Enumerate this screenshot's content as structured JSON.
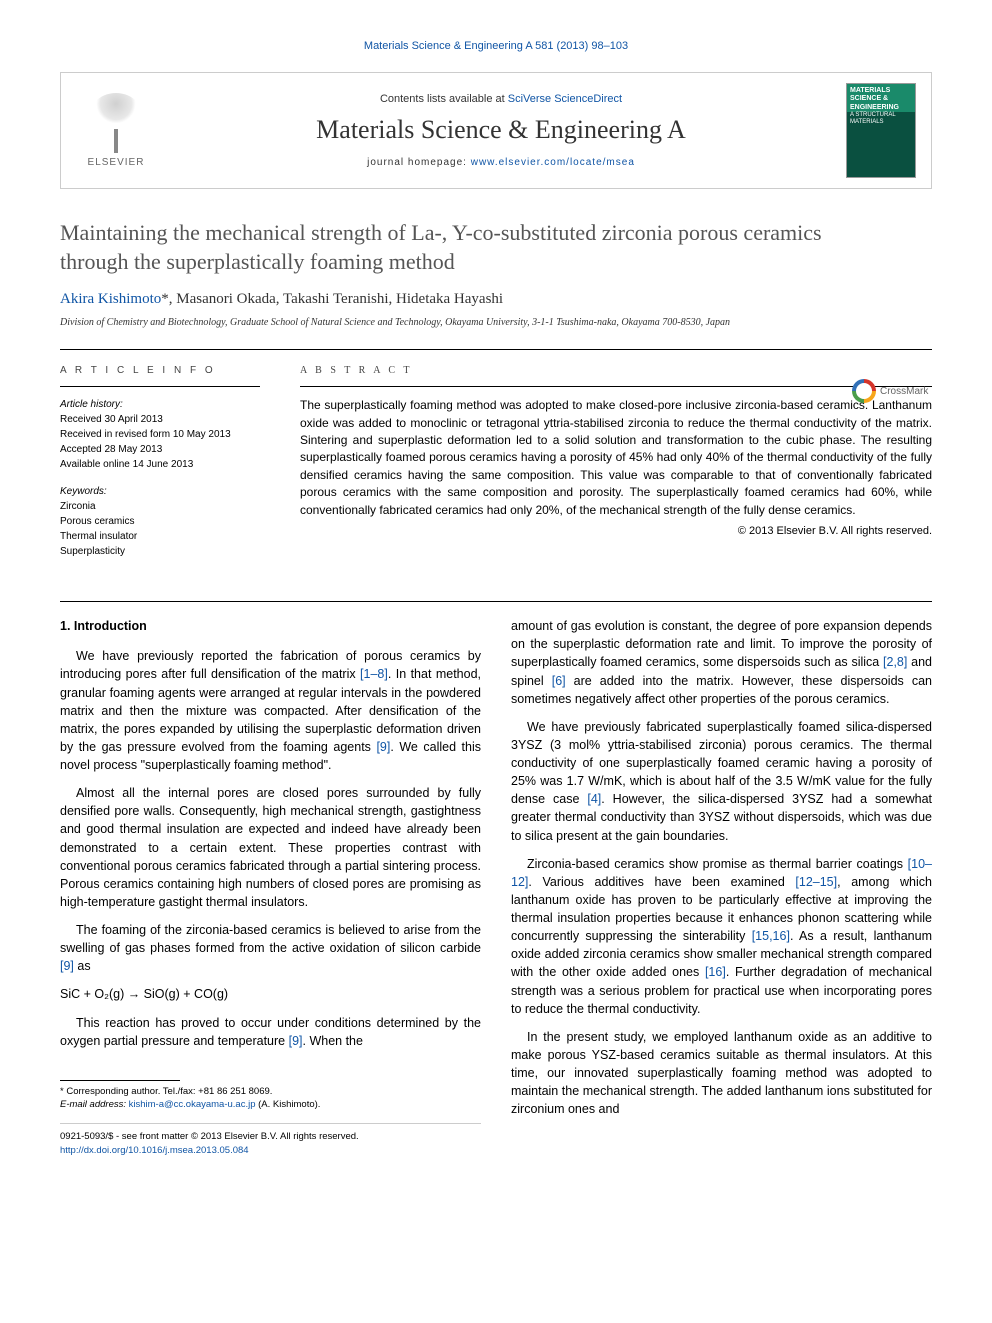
{
  "top_link": "Materials Science & Engineering A 581 (2013) 98–103",
  "header": {
    "elsevier": "ELSEVIER",
    "contents_prefix": "Contents lists available at ",
    "contents_link": "SciVerse ScienceDirect",
    "journal_name": "Materials Science & Engineering A",
    "homepage_prefix": "journal homepage: ",
    "homepage_link": "www.elsevier.com/locate/msea",
    "cover_title": "MATERIALS SCIENCE & ENGINEERING",
    "cover_sub": "A STRUCTURAL MATERIALS"
  },
  "crossmark": "CrossMark",
  "article": {
    "title": "Maintaining the mechanical strength of La-, Y-co-substituted zirconia porous ceramics through the superplastically foaming method",
    "authors_list": "Akira Kishimoto",
    "authors_rest": ", Masanori Okada, Takashi Teranishi, Hidetaka Hayashi",
    "star": "*",
    "affiliation": "Division of Chemistry and Biotechnology, Graduate School of Natural Science and Technology, Okayama University, 3-1-1 Tsushima-naka, Okayama 700-8530, Japan"
  },
  "info": {
    "heading": "A R T I C L E  I N F O",
    "history_label": "Article history:",
    "received": "Received 30 April 2013",
    "revised": "Received in revised form 10 May 2013",
    "accepted": "Accepted 28 May 2013",
    "online": "Available online 14 June 2013",
    "keywords_label": "Keywords:",
    "kw1": "Zirconia",
    "kw2": "Porous ceramics",
    "kw3": "Thermal insulator",
    "kw4": "Superplasticity"
  },
  "abstract": {
    "heading": "A B S T R A C T",
    "text": "The superplastically foaming method was adopted to make closed-pore inclusive zirconia-based ceramics. Lanthanum oxide was added to monoclinic or tetragonal yttria-stabilised zirconia to reduce the thermal conductivity of the matrix. Sintering and superplastic deformation led to a solid solution and transformation to the cubic phase. The resulting superplastically foamed porous ceramics having a porosity of 45% had only 40% of the thermal conductivity of the fully densified ceramics having the same composition. This value was comparable to that of conventionally fabricated porous ceramics with the same composition and porosity. The superplastically foamed ceramics had 60%, while conventionally fabricated ceramics had only 20%, of the mechanical strength of the fully dense ceramics.",
    "copyright": "© 2013 Elsevier B.V. All rights reserved."
  },
  "body": {
    "section_1": "1.  Introduction",
    "p1a": "We have previously reported the fabrication of porous ceramics by introducing pores after full densification of the matrix ",
    "p1_ref1": "[1–8]",
    "p1b": ". In that method, granular foaming agents were arranged at regular intervals in the powdered matrix and then the mixture was compacted. After densification of the matrix, the pores expanded by utilising the superplastic deformation driven by the gas pressure evolved from the foaming agents ",
    "p1_ref2": "[9]",
    "p1c": ". We called this novel process \"superplastically foaming method\".",
    "p2": "Almost all the internal pores are closed pores surrounded by fully densified pore walls. Consequently, high mechanical strength, gastightness and good thermal insulation are expected and indeed have already been demonstrated to a certain extent. These properties contrast with conventional porous ceramics fabricated through a partial sintering process. Porous ceramics containing high numbers of closed pores are promising as high-temperature gastight thermal insulators.",
    "p3a": "The foaming of the zirconia-based ceramics is believed to arise from the swelling of gas phases formed from the active oxidation of silicon carbide ",
    "p3_ref": "[9]",
    "p3b": " as",
    "formula": "SiC + O₂(g) → SiO(g) + CO(g)",
    "p4a": "This reaction has proved to occur under conditions determined by the oxygen partial pressure and temperature ",
    "p4_ref": "[9]",
    "p4b": ". When the",
    "p5a": "amount of gas evolution is constant, the degree of pore expansion depends on the superplastic deformation rate and limit. To improve the porosity of superplastically foamed ceramics, some dispersoids such as silica ",
    "p5_ref1": "[2,8]",
    "p5b": " and spinel ",
    "p5_ref2": "[6]",
    "p5c": " are added into the matrix. However, these dispersoids can sometimes negatively affect other properties of the porous ceramics.",
    "p6a": "We have previously fabricated superplastically foamed silica-dispersed 3YSZ (3 mol% yttria-stabilised zirconia) porous ceramics. The thermal conductivity of one superplastically foamed ceramic having a porosity of 25% was 1.7 W/mK, which is about half of the 3.5 W/mK value for the fully dense case ",
    "p6_ref": "[4]",
    "p6b": ". However, the silica-dispersed 3YSZ had a somewhat greater thermal conductivity than 3YSZ without dispersoids, which was due to silica present at the gain boundaries.",
    "p7a": "Zirconia-based ceramics show promise as thermal barrier coatings ",
    "p7_ref1": "[10–12]",
    "p7b": ". Various additives have been examined ",
    "p7_ref2": "[12–15]",
    "p7c": ", among which lanthanum oxide has proven to be particularly effective at improving the thermal insulation properties because it enhances phonon scattering while concurrently suppressing the sinterability ",
    "p7_ref3": "[15,16]",
    "p7d": ". As a result, lanthanum oxide added zirconia ceramics show smaller mechanical strength compared with the other oxide added ones ",
    "p7_ref4": "[16]",
    "p7e": ". Further degradation of mechanical strength was a serious problem for practical use when incorporating pores to reduce the thermal conductivity.",
    "p8": "In the present study, we employed lanthanum oxide as an additive to make porous YSZ-based ceramics suitable as thermal insulators. At this time, our innovated superplastically foaming method was adopted to maintain the mechanical strength. The added lanthanum ions substituted for zirconium ones and"
  },
  "footer": {
    "corr_author": "* Corresponding author. Tel./fax: +81 86 251 8069.",
    "email_label": "E-mail address: ",
    "email": "kishim-a@cc.okayama-u.ac.jp",
    "email_suffix": " (A. Kishimoto).",
    "issn": "0921-5093/$ - see front matter © 2013 Elsevier B.V. All rights reserved.",
    "doi": "http://dx.doi.org/10.1016/j.msea.2013.05.084"
  },
  "colors": {
    "link": "#1055a5",
    "text": "#000000",
    "title_gray": "#555555"
  }
}
